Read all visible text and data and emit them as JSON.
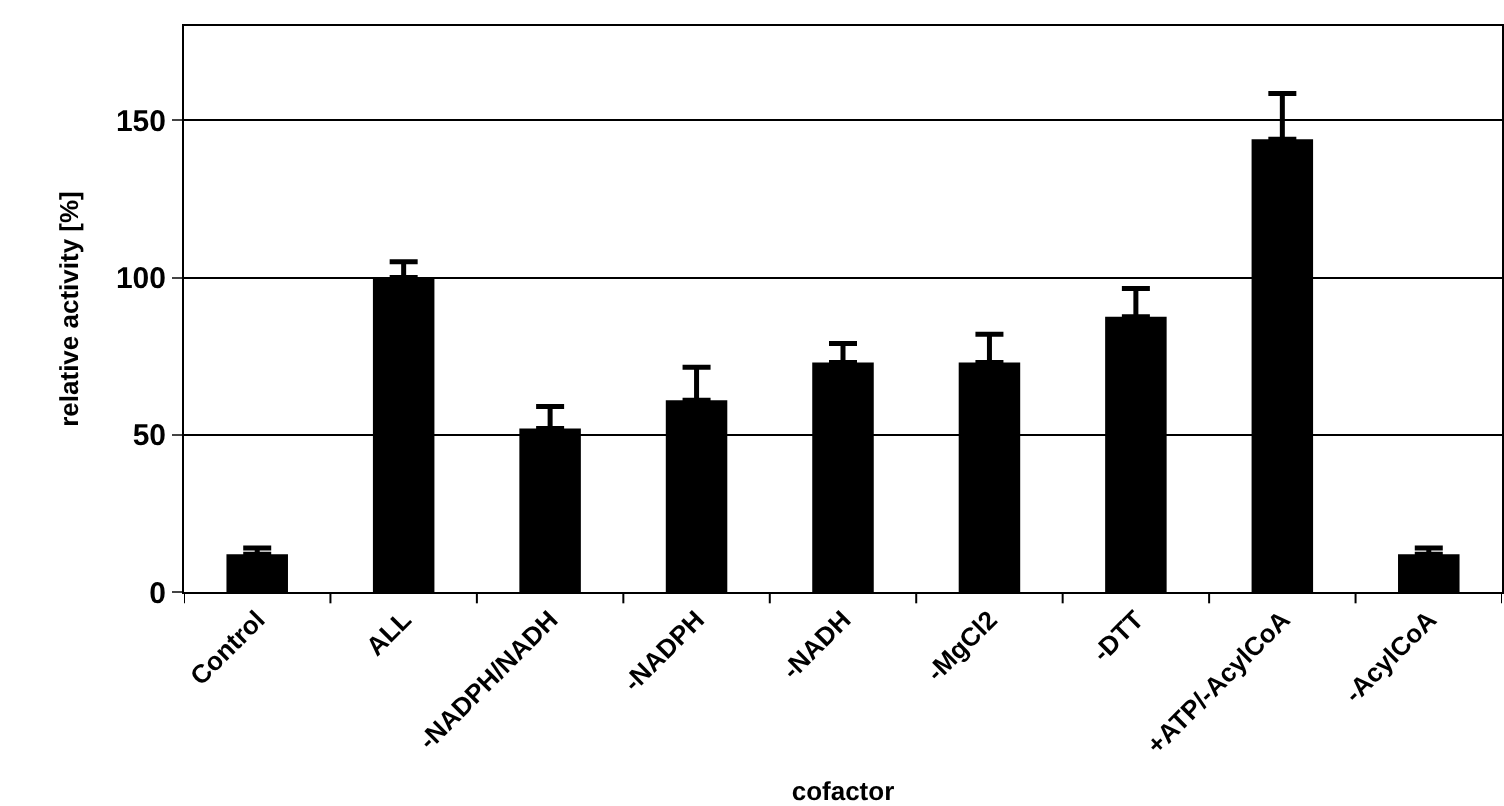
{
  "chart_data": {
    "type": "bar",
    "xlabel": "cofactor",
    "ylabel": "relative activity [%]",
    "categories": [
      "Control",
      "ALL",
      "-NADPH/NADH",
      "-NADPH",
      "-NADH",
      "-MgCl2",
      "-DTT",
      "+ATP/-AcylCoA",
      "-AcylCoA"
    ],
    "values": [
      12,
      100,
      52,
      61,
      73,
      73,
      87.5,
      144,
      12
    ],
    "errors": [
      [
        12,
        14
      ],
      [
        100,
        105
      ],
      [
        52,
        59
      ],
      [
        61,
        71.5
      ],
      [
        73,
        79
      ],
      [
        73,
        82
      ],
      [
        87.5,
        96.5
      ],
      [
        144,
        158.5
      ],
      [
        12,
        14
      ]
    ],
    "color": "#000000",
    "ylim": [
      0,
      180
    ],
    "yticks": [
      0,
      50,
      100,
      150
    ],
    "grid": "y"
  }
}
